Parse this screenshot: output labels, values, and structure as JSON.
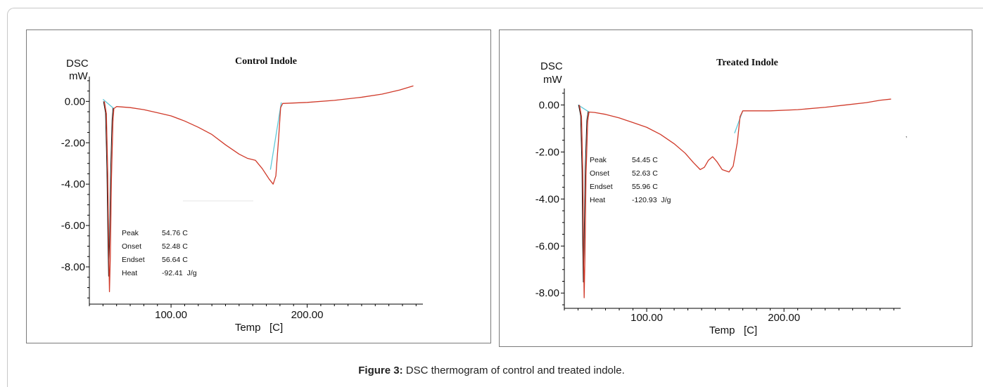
{
  "caption": {
    "label": "Figure 3:",
    "text": " DSC thermogram of control and treated indole."
  },
  "stray_mark": "’",
  "colors": {
    "dsc_curve": "#d03a2a",
    "baseline": "#5ec8d8",
    "axis": "#000000",
    "frame": "#7a7a7a",
    "dark_trace": "#1a1a1a"
  },
  "chart_data": [
    {
      "type": "line",
      "title": "Control Indole",
      "ylabel_top": "DSC",
      "ylabel_unit": "mW",
      "xlabel": "Temp   [C]",
      "xlim": [
        40,
        285
      ],
      "ylim": [
        -9.8,
        1.2
      ],
      "xticks": [
        100,
        200
      ],
      "xtick_labels": [
        "100.00",
        "200.00"
      ],
      "yticks": [
        0,
        -2,
        -4,
        -6,
        -8
      ],
      "ytick_labels": [
        "0.00",
        "-2.00",
        "-4.00",
        "-6.00",
        "-8.00"
      ],
      "grid": false,
      "series": [
        {
          "values_xy": [
            [
              51,
              0.0
            ],
            [
              52.5,
              -0.6
            ],
            [
              53.5,
              -3.5
            ],
            [
              54.3,
              -7.5
            ],
            [
              54.76,
              -9.2
            ],
            [
              55.4,
              -7.5
            ],
            [
              56.2,
              -3.8
            ],
            [
              57.3,
              -1.0
            ],
            [
              58,
              -0.35
            ],
            [
              60,
              -0.25
            ],
            [
              70,
              -0.3
            ],
            [
              80,
              -0.4
            ],
            [
              90,
              -0.55
            ],
            [
              100,
              -0.7
            ],
            [
              110,
              -0.95
            ],
            [
              120,
              -1.25
            ],
            [
              130,
              -1.6
            ],
            [
              140,
              -2.1
            ],
            [
              150,
              -2.55
            ],
            [
              156,
              -2.75
            ],
            [
              162,
              -2.85
            ],
            [
              167,
              -3.25
            ],
            [
              172,
              -3.75
            ],
            [
              175,
              -4.0
            ],
            [
              177,
              -3.6
            ],
            [
              179,
              -1.8
            ],
            [
              180.5,
              -0.3
            ],
            [
              182,
              -0.1
            ],
            [
              200,
              -0.05
            ],
            [
              220,
              0.05
            ],
            [
              240,
              0.2
            ],
            [
              255,
              0.35
            ],
            [
              268,
              0.55
            ],
            [
              278,
              0.75
            ]
          ]
        }
      ],
      "baseline_segments": [
        [
          [
            50,
            0.1
          ],
          [
            58,
            -0.35
          ]
        ],
        [
          [
            173,
            -3.3
          ],
          [
            181,
            -0.05
          ]
        ]
      ],
      "annotations": [
        {
          "label": "Peak",
          "value": "54.76 C"
        },
        {
          "label": "Onset",
          "value": "52.48 C"
        },
        {
          "label": "Endset",
          "value": "56.64 C"
        },
        {
          "label": "Heat",
          "value": "-92.41  J/g"
        }
      ]
    },
    {
      "type": "line",
      "title": "Treated Indole",
      "ylabel_top": "DSC",
      "ylabel_unit": "mW",
      "xlabel": "Temp   [C]",
      "xlim": [
        40,
        285
      ],
      "ylim": [
        -8.65,
        0.7
      ],
      "xticks": [
        100,
        200
      ],
      "xtick_labels": [
        "100.00",
        "200.00"
      ],
      "yticks": [
        0,
        -2,
        -4,
        -6,
        -8
      ],
      "ytick_labels": [
        "0.00",
        "-2.00",
        "-4.00",
        "-6.00",
        "-8.00"
      ],
      "grid": false,
      "series": [
        {
          "values_xy": [
            [
              51,
              0.0
            ],
            [
              52.5,
              -0.5
            ],
            [
              53.5,
              -3.0
            ],
            [
              54.0,
              -6.5
            ],
            [
              54.45,
              -8.2
            ],
            [
              55.0,
              -6.5
            ],
            [
              55.8,
              -3.0
            ],
            [
              57,
              -0.7
            ],
            [
              58,
              -0.3
            ],
            [
              62,
              -0.32
            ],
            [
              70,
              -0.4
            ],
            [
              80,
              -0.55
            ],
            [
              90,
              -0.75
            ],
            [
              100,
              -0.95
            ],
            [
              110,
              -1.25
            ],
            [
              120,
              -1.65
            ],
            [
              128,
              -2.05
            ],
            [
              134,
              -2.45
            ],
            [
              139,
              -2.75
            ],
            [
              142,
              -2.65
            ],
            [
              145,
              -2.35
            ],
            [
              148,
              -2.2
            ],
            [
              151,
              -2.4
            ],
            [
              155,
              -2.75
            ],
            [
              160,
              -2.85
            ],
            [
              163,
              -2.6
            ],
            [
              166,
              -1.6
            ],
            [
              168,
              -0.5
            ],
            [
              170,
              -0.25
            ],
            [
              190,
              -0.25
            ],
            [
              210,
              -0.2
            ],
            [
              230,
              -0.1
            ],
            [
              245,
              0.0
            ],
            [
              260,
              0.1
            ],
            [
              270,
              0.2
            ],
            [
              278,
              0.25
            ]
          ]
        }
      ],
      "baseline_segments": [
        [
          [
            50,
            0.0
          ],
          [
            58,
            -0.3
          ]
        ],
        [
          [
            164,
            -1.2
          ],
          [
            170,
            -0.25
          ]
        ]
      ],
      "annotations": [
        {
          "label": "Peak",
          "value": "54.45 C"
        },
        {
          "label": "Onset",
          "value": "52.63 C"
        },
        {
          "label": "Endset",
          "value": "55.96 C"
        },
        {
          "label": "Heat",
          "value": "-120.93  J/g"
        }
      ]
    }
  ]
}
